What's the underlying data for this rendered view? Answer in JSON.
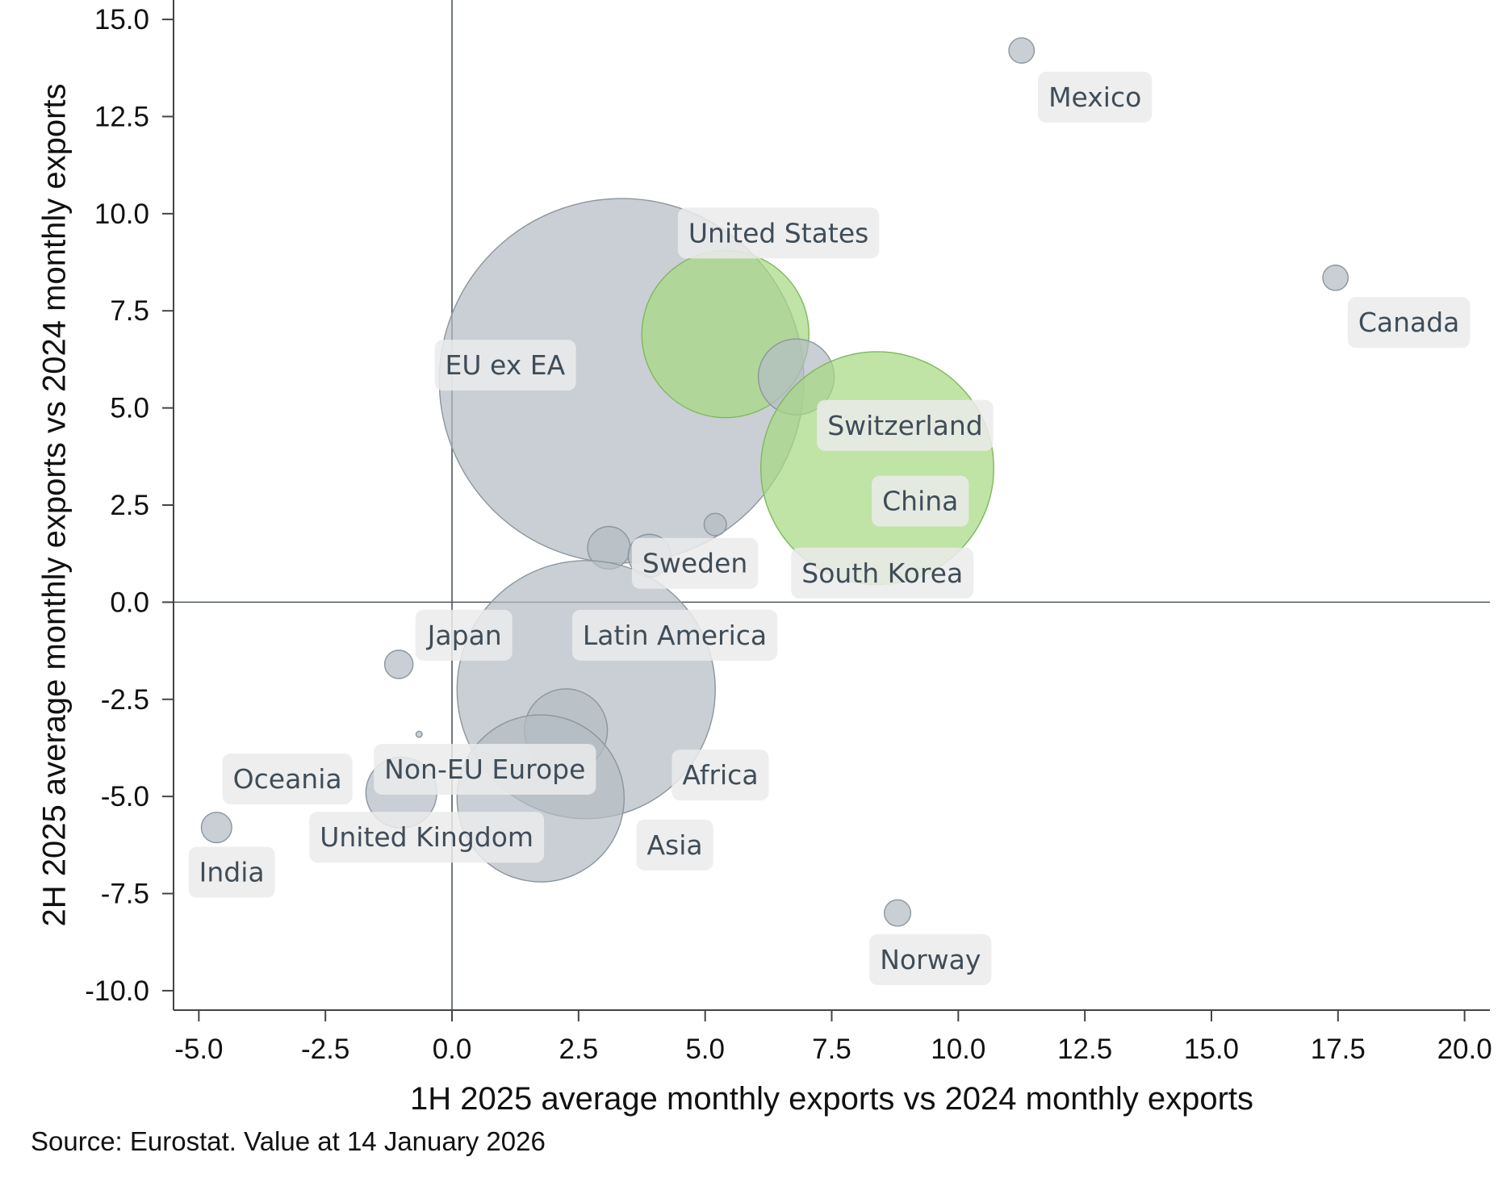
{
  "chart_data": {
    "type": "scatter",
    "xlabel": "1H 2025 average monthly exports vs 2024 monthly exports",
    "ylabel": "2H 2025 average monthly exports vs 2024 monthly exports",
    "xlim": [
      -5.5,
      20.5
    ],
    "ylim": [
      -10.5,
      15.5
    ],
    "x_ticks": [
      "-5.0",
      "-2.5",
      "0.0",
      "2.5",
      "5.0",
      "7.5",
      "10.0",
      "12.5",
      "15.0",
      "17.5",
      "20.0"
    ],
    "y_ticks": [
      "15.0",
      "12.5",
      "10.0",
      "7.5",
      "5.0",
      "2.5",
      "0.0",
      "-2.5",
      "-5.0",
      "-7.5",
      "-10.0"
    ],
    "reference_lines": {
      "x": 0,
      "y": 0
    },
    "bubble_colors": {
      "default": "#b4bcc3",
      "highlight": "#a8d883"
    },
    "points": [
      {
        "x": 11.25,
        "y": 14.2,
        "r": 0.25,
        "highlight": false
      },
      {
        "x": 17.45,
        "y": 8.35,
        "r": 0.25,
        "highlight": false
      },
      {
        "x": 3.35,
        "y": 5.7,
        "r": 3.6,
        "highlight": false
      },
      {
        "x": 5.4,
        "y": 6.9,
        "r": 1.65,
        "highlight": true
      },
      {
        "x": 6.8,
        "y": 5.8,
        "r": 0.75,
        "highlight": false
      },
      {
        "x": 8.4,
        "y": 3.45,
        "r": 2.3,
        "highlight": true
      },
      {
        "x": 5.2,
        "y": 2.0,
        "r": 0.22,
        "highlight": false
      },
      {
        "x": 3.1,
        "y": 1.4,
        "r": 0.42,
        "highlight": false
      },
      {
        "x": 3.9,
        "y": 1.2,
        "r": 0.42,
        "highlight": false
      },
      {
        "x": 2.65,
        "y": -2.25,
        "r": 2.55,
        "highlight": false
      },
      {
        "x": 2.25,
        "y": -3.3,
        "r": 0.82,
        "highlight": false
      },
      {
        "x": 1.75,
        "y": -5.05,
        "r": 1.65,
        "highlight": false
      },
      {
        "x": -1.05,
        "y": -1.6,
        "r": 0.28,
        "highlight": false
      },
      {
        "x": -0.65,
        "y": -3.4,
        "r": 0.06,
        "highlight": false
      },
      {
        "x": -1.0,
        "y": -4.9,
        "r": 0.7,
        "highlight": false
      },
      {
        "x": -4.65,
        "y": -5.8,
        "r": 0.3,
        "highlight": false
      },
      {
        "x": 8.8,
        "y": -8.0,
        "r": 0.26,
        "highlight": false
      }
    ],
    "labels": [
      {
        "text": "Mexico",
        "x": 12.7,
        "y": 13.0
      },
      {
        "text": "Canada",
        "x": 18.9,
        "y": 7.2
      },
      {
        "text": "United States",
        "x": 6.45,
        "y": 9.5
      },
      {
        "text": "EU ex EA",
        "x": 1.05,
        "y": 6.1
      },
      {
        "text": "Switzerland",
        "x": 8.95,
        "y": 4.55
      },
      {
        "text": "China",
        "x": 9.25,
        "y": 2.6
      },
      {
        "text": "Sweden",
        "x": 4.8,
        "y": 1.0
      },
      {
        "text": "South Korea",
        "x": 8.5,
        "y": 0.75
      },
      {
        "text": "Japan",
        "x": 0.25,
        "y": -0.85
      },
      {
        "text": "Latin America",
        "x": 4.4,
        "y": -0.85
      },
      {
        "text": "Non-EU Europe",
        "x": 0.65,
        "y": -4.3
      },
      {
        "text": "Africa",
        "x": 5.3,
        "y": -4.45
      },
      {
        "text": "Oceania",
        "x": -3.25,
        "y": -4.55
      },
      {
        "text": "United Kingdom",
        "x": -0.5,
        "y": -6.05
      },
      {
        "text": "Asia",
        "x": 4.4,
        "y": -6.25
      },
      {
        "text": "India",
        "x": -4.35,
        "y": -6.95
      },
      {
        "text": "Norway",
        "x": 9.45,
        "y": -9.2
      }
    ]
  },
  "source_note": "Source: Eurostat. Value at 14 January 2026"
}
